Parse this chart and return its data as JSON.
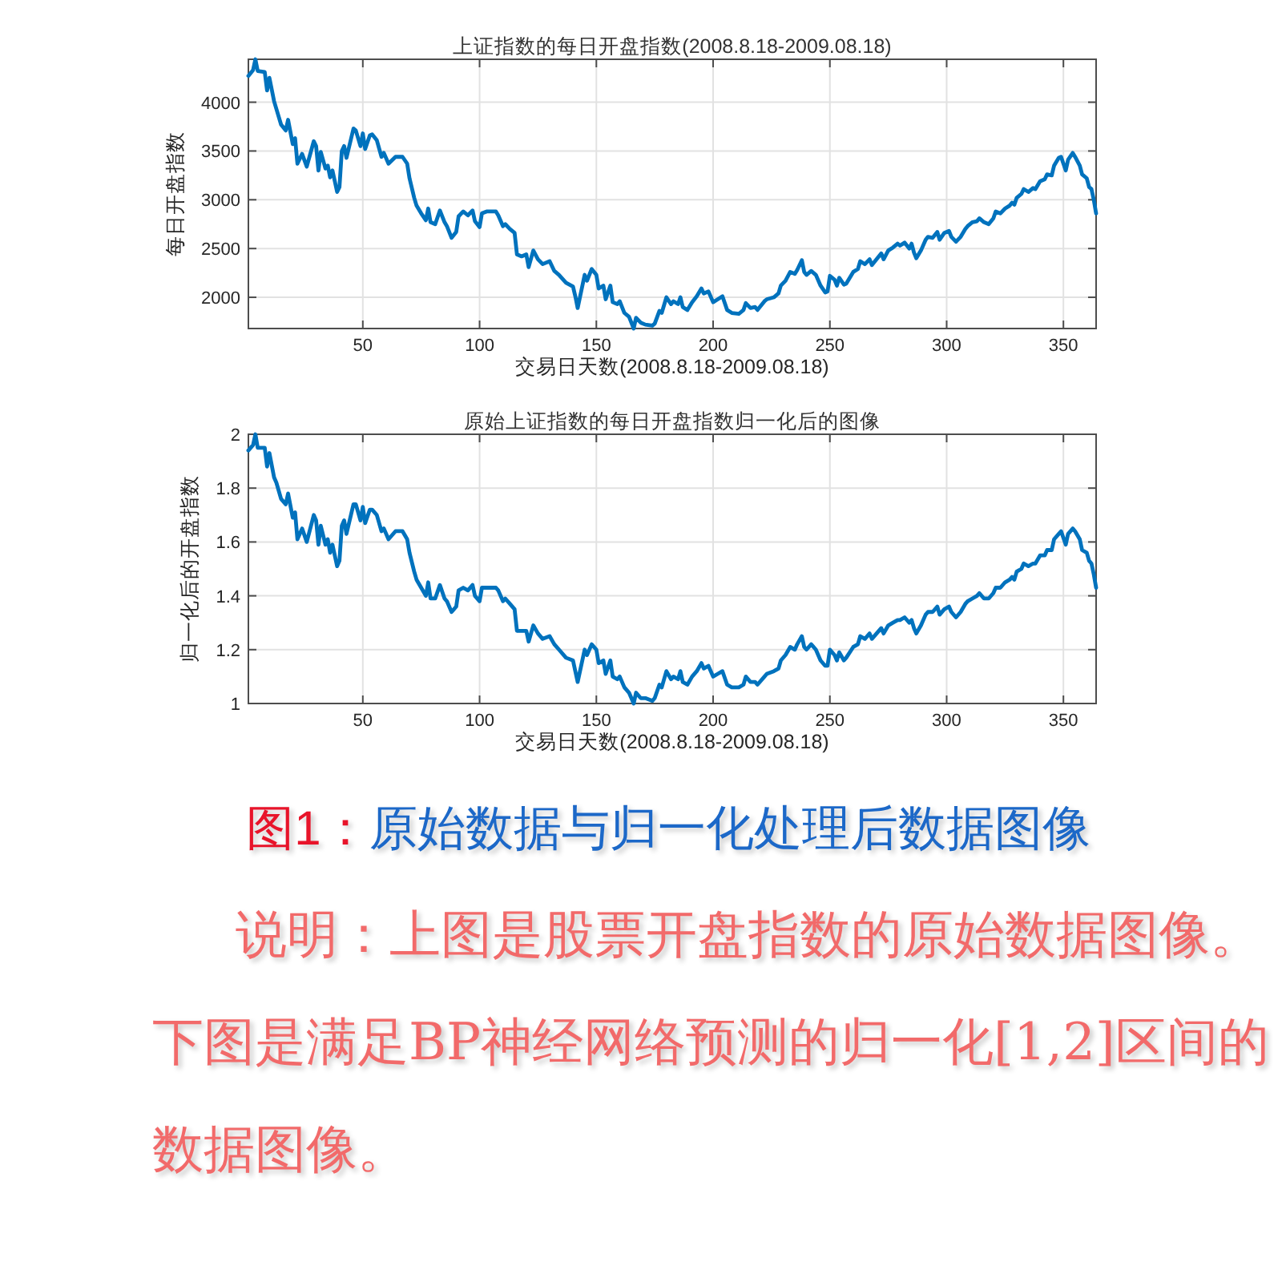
{
  "chart_data": [
    {
      "type": "line",
      "title": "上证指数的每日开盘指数(2008.8.18-2009.08.18)",
      "xlabel": "交易日天数(2008.8.18-2009.08.18)",
      "ylabel": "每日开盘指数",
      "xlim": [
        1,
        364
      ],
      "ylim": [
        1680,
        4440
      ],
      "xticks": [
        50,
        100,
        150,
        200,
        250,
        300,
        350
      ],
      "yticks": [
        2000,
        2500,
        3000,
        3500,
        4000
      ],
      "grid": true,
      "x": [
        1,
        3,
        4,
        5,
        8,
        9,
        10,
        12,
        13,
        15,
        17,
        18,
        20,
        21,
        22,
        24,
        26,
        29,
        30,
        31,
        32,
        34,
        35,
        36,
        37,
        39,
        40,
        41,
        42,
        43,
        46,
        47,
        49,
        50,
        51,
        53,
        54,
        56,
        58,
        59,
        61,
        64,
        67,
        69,
        70,
        72,
        73,
        75,
        77,
        78,
        79,
        81,
        83,
        85,
        86,
        88,
        90,
        91,
        93,
        95,
        97,
        98,
        100,
        101,
        103,
        107,
        108,
        110,
        111,
        113,
        115,
        116,
        118,
        120,
        121,
        123,
        125,
        127,
        130,
        132,
        134,
        137,
        140,
        141,
        142,
        145,
        146,
        148,
        150,
        151,
        153,
        154,
        156,
        157,
        159,
        160,
        162,
        164,
        166,
        167,
        169,
        171,
        174,
        175,
        177,
        178,
        180,
        182,
        183,
        185,
        186,
        187,
        189,
        191,
        193,
        195,
        196,
        198,
        200,
        202,
        204,
        206,
        208,
        211,
        213,
        214,
        216,
        218,
        219,
        222,
        223,
        226,
        228,
        229,
        231,
        233,
        235,
        236,
        238,
        239,
        240,
        242,
        244,
        246,
        248,
        249,
        250,
        252,
        253,
        254,
        256,
        257,
        260,
        262,
        263,
        265,
        267,
        268,
        270,
        272,
        273,
        275,
        277,
        279,
        280,
        282,
        284,
        285,
        286,
        287,
        289,
        291,
        292,
        294,
        296,
        297,
        299,
        301,
        302,
        304,
        306,
        308,
        309,
        311,
        313,
        314,
        316,
        318,
        320,
        321,
        323,
        325,
        327,
        328,
        329,
        330,
        332,
        333,
        335,
        337,
        338,
        340,
        342,
        343,
        345,
        346,
        348,
        349,
        351,
        352,
        354,
        355,
        357,
        358,
        360,
        361,
        362,
        363,
        364
      ],
      "series": [
        {
          "color": "#0072bd",
          "values": [
            4270,
            4330,
            4440,
            4320,
            4310,
            4120,
            4250,
            4010,
            3930,
            3770,
            3710,
            3820,
            3570,
            3630,
            3370,
            3470,
            3340,
            3600,
            3550,
            3300,
            3490,
            3320,
            3350,
            3230,
            3300,
            3080,
            3130,
            3500,
            3550,
            3430,
            3730,
            3710,
            3550,
            3680,
            3520,
            3660,
            3670,
            3610,
            3440,
            3480,
            3370,
            3440,
            3440,
            3370,
            3220,
            3020,
            2940,
            2860,
            2790,
            2910,
            2770,
            2750,
            2890,
            2770,
            2730,
            2610,
            2670,
            2830,
            2880,
            2840,
            2890,
            2780,
            2720,
            2860,
            2880,
            2880,
            2840,
            2730,
            2750,
            2700,
            2660,
            2440,
            2420,
            2440,
            2310,
            2480,
            2390,
            2340,
            2370,
            2270,
            2230,
            2150,
            2110,
            2010,
            1890,
            2230,
            2170,
            2290,
            2230,
            2090,
            2120,
            1980,
            2120,
            1950,
            1930,
            1960,
            1840,
            1800,
            1680,
            1790,
            1740,
            1720,
            1710,
            1730,
            1860,
            1840,
            2000,
            1930,
            1960,
            1930,
            2000,
            1900,
            1870,
            1950,
            2010,
            2090,
            2040,
            2060,
            1950,
            1980,
            2010,
            1870,
            1840,
            1830,
            1870,
            1940,
            1890,
            1900,
            1870,
            1960,
            1980,
            2000,
            2040,
            2120,
            2170,
            2260,
            2240,
            2280,
            2380,
            2260,
            2230,
            2270,
            2230,
            2120,
            2050,
            2060,
            2220,
            2180,
            2120,
            2200,
            2130,
            2140,
            2260,
            2290,
            2370,
            2340,
            2390,
            2330,
            2390,
            2450,
            2390,
            2480,
            2510,
            2550,
            2530,
            2560,
            2500,
            2550,
            2460,
            2400,
            2480,
            2590,
            2620,
            2610,
            2670,
            2590,
            2660,
            2680,
            2620,
            2570,
            2620,
            2700,
            2730,
            2770,
            2780,
            2810,
            2770,
            2750,
            2810,
            2880,
            2860,
            2910,
            2940,
            2970,
            2950,
            3020,
            3060,
            3110,
            3080,
            3120,
            3110,
            3190,
            3210,
            3260,
            3250,
            3350,
            3430,
            3440,
            3300,
            3410,
            3480,
            3440,
            3350,
            3260,
            3220,
            3130,
            3110,
            3000,
            2860
          ]
        }
      ]
    },
    {
      "type": "line",
      "title": "原始上证指数的每日开盘指数归一化后的图像",
      "xlabel": "交易日天数(2008.8.18-2009.08.18)",
      "ylabel": "归一化后的开盘指数",
      "xlim": [
        1,
        364
      ],
      "ylim": [
        1,
        2
      ],
      "xticks": [
        50,
        100,
        150,
        200,
        250,
        300,
        350
      ],
      "yticks": [
        1,
        1.2,
        1.4,
        1.6,
        1.8,
        2
      ],
      "grid": true,
      "x": [
        1,
        3,
        4,
        5,
        8,
        9,
        10,
        12,
        13,
        15,
        17,
        18,
        20,
        21,
        22,
        24,
        26,
        29,
        30,
        31,
        32,
        34,
        35,
        36,
        37,
        39,
        40,
        41,
        42,
        43,
        46,
        47,
        49,
        50,
        51,
        53,
        54,
        56,
        58,
        59,
        61,
        64,
        67,
        69,
        70,
        72,
        73,
        75,
        77,
        78,
        79,
        81,
        83,
        85,
        86,
        88,
        90,
        91,
        93,
        95,
        97,
        98,
        100,
        101,
        103,
        107,
        108,
        110,
        111,
        113,
        115,
        116,
        118,
        120,
        121,
        123,
        125,
        127,
        130,
        132,
        134,
        137,
        140,
        141,
        142,
        145,
        146,
        148,
        150,
        151,
        153,
        154,
        156,
        157,
        159,
        160,
        162,
        164,
        166,
        167,
        169,
        171,
        174,
        175,
        177,
        178,
        180,
        182,
        183,
        185,
        186,
        187,
        189,
        191,
        193,
        195,
        196,
        198,
        200,
        202,
        204,
        206,
        208,
        211,
        213,
        214,
        216,
        218,
        219,
        222,
        223,
        226,
        228,
        229,
        231,
        233,
        235,
        236,
        238,
        239,
        240,
        242,
        244,
        246,
        248,
        249,
        250,
        252,
        253,
        254,
        256,
        257,
        260,
        262,
        263,
        265,
        267,
        268,
        270,
        272,
        273,
        275,
        277,
        279,
        280,
        282,
        284,
        285,
        286,
        287,
        289,
        291,
        292,
        294,
        296,
        297,
        299,
        301,
        302,
        304,
        306,
        308,
        309,
        311,
        313,
        314,
        316,
        318,
        320,
        321,
        323,
        325,
        327,
        328,
        329,
        330,
        332,
        333,
        335,
        337,
        338,
        340,
        342,
        343,
        345,
        346,
        348,
        349,
        351,
        352,
        354,
        355,
        357,
        358,
        360,
        361,
        362,
        363,
        364
      ],
      "series": [
        {
          "color": "#0072bd",
          "values": [
            1.94,
            1.96,
            2.0,
            1.95,
            1.95,
            1.88,
            1.93,
            1.84,
            1.82,
            1.76,
            1.74,
            1.78,
            1.69,
            1.71,
            1.61,
            1.65,
            1.6,
            1.7,
            1.68,
            1.59,
            1.66,
            1.59,
            1.61,
            1.56,
            1.59,
            1.51,
            1.53,
            1.66,
            1.68,
            1.63,
            1.74,
            1.74,
            1.68,
            1.73,
            1.67,
            1.72,
            1.72,
            1.7,
            1.64,
            1.65,
            1.61,
            1.64,
            1.64,
            1.61,
            1.56,
            1.49,
            1.46,
            1.43,
            1.4,
            1.45,
            1.39,
            1.39,
            1.44,
            1.39,
            1.38,
            1.34,
            1.36,
            1.42,
            1.43,
            1.42,
            1.44,
            1.4,
            1.38,
            1.43,
            1.43,
            1.43,
            1.42,
            1.38,
            1.39,
            1.37,
            1.35,
            1.27,
            1.27,
            1.27,
            1.23,
            1.29,
            1.26,
            1.24,
            1.25,
            1.22,
            1.2,
            1.17,
            1.16,
            1.12,
            1.08,
            1.2,
            1.18,
            1.22,
            1.2,
            1.15,
            1.16,
            1.11,
            1.16,
            1.1,
            1.09,
            1.1,
            1.06,
            1.04,
            1.0,
            1.04,
            1.02,
            1.02,
            1.01,
            1.02,
            1.07,
            1.06,
            1.12,
            1.09,
            1.1,
            1.09,
            1.12,
            1.08,
            1.07,
            1.1,
            1.12,
            1.15,
            1.13,
            1.14,
            1.1,
            1.11,
            1.12,
            1.07,
            1.06,
            1.06,
            1.07,
            1.1,
            1.08,
            1.08,
            1.07,
            1.1,
            1.11,
            1.12,
            1.13,
            1.16,
            1.18,
            1.21,
            1.2,
            1.22,
            1.25,
            1.21,
            1.2,
            1.22,
            1.2,
            1.16,
            1.14,
            1.14,
            1.2,
            1.18,
            1.16,
            1.19,
            1.16,
            1.17,
            1.21,
            1.22,
            1.25,
            1.24,
            1.26,
            1.24,
            1.26,
            1.28,
            1.26,
            1.29,
            1.3,
            1.31,
            1.31,
            1.32,
            1.3,
            1.31,
            1.28,
            1.26,
            1.29,
            1.33,
            1.34,
            1.34,
            1.36,
            1.33,
            1.35,
            1.36,
            1.34,
            1.32,
            1.34,
            1.37,
            1.38,
            1.39,
            1.4,
            1.41,
            1.39,
            1.39,
            1.41,
            1.43,
            1.43,
            1.45,
            1.46,
            1.47,
            1.46,
            1.49,
            1.5,
            1.52,
            1.51,
            1.52,
            1.52,
            1.55,
            1.55,
            1.57,
            1.57,
            1.61,
            1.63,
            1.64,
            1.59,
            1.63,
            1.65,
            1.64,
            1.61,
            1.57,
            1.56,
            1.53,
            1.52,
            1.48,
            1.43
          ]
        }
      ]
    },
    {
      "type": "other",
      "title": "图1：原始数据与归一化处理后数据图像",
      "annotations": [
        "说明：上图是股票开盘指数的原始数据图像。下图是满足BP神经网络预测的归一化[1,2]区间的数据图像。"
      ]
    }
  ]
}
